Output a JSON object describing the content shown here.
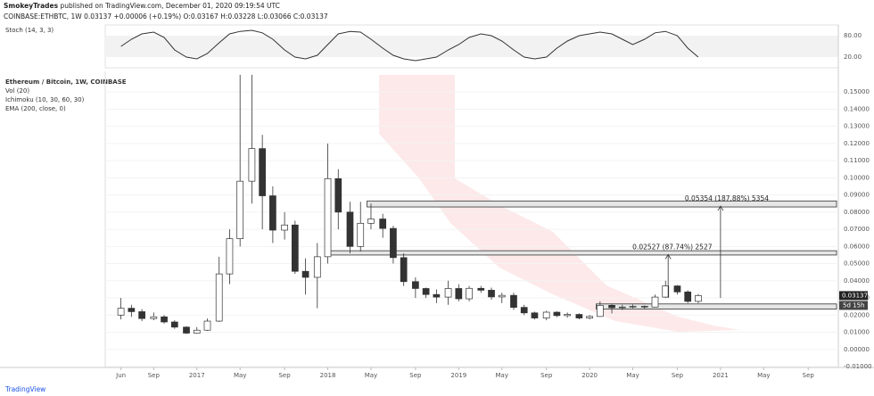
{
  "header": {
    "author": "SmokeyTrades",
    "published": "published on TradingView.com, December 01, 2020 09:19:54 UTC",
    "quote": "COINBASE:ETHBTC, 1W 0.03137 +0.00006 (+0.19%) O:0.03167 H:0.03228 L:0.03066 C:0.03137"
  },
  "indicators": {
    "stoch_label": "Stoch (14, 3, 3)",
    "symbol": "Ethereum / Bitcoin, 1W, COINBASE",
    "vol": "Vol (20)",
    "ichimoku": "Ichimoku (10, 30, 60, 30)",
    "ema": "EMA (200, close, 0)"
  },
  "footer": "TradingView",
  "chart_data": {
    "type": "candlestick",
    "x": [
      2016.42,
      2016.5,
      2016.58,
      2016.67,
      2016.75,
      2016.83,
      2016.92,
      2017.0,
      2017.08,
      2017.17,
      2017.25,
      2017.33,
      2017.42,
      2017.5,
      2017.58,
      2017.67,
      2017.75,
      2017.83,
      2017.92,
      2018.0,
      2018.08,
      2018.17,
      2018.25,
      2018.33,
      2018.42,
      2018.5,
      2018.58,
      2018.67,
      2018.75,
      2018.83,
      2018.92,
      2019.0,
      2019.08,
      2019.17,
      2019.25,
      2019.33,
      2019.42,
      2019.5,
      2019.58,
      2019.67,
      2019.75,
      2019.83,
      2019.92,
      2020.0,
      2020.08,
      2020.17,
      2020.25,
      2020.33,
      2020.42,
      2020.5,
      2020.58,
      2020.67,
      2020.75,
      2020.83
    ],
    "open": [
      0.02,
      0.024,
      0.022,
      0.018,
      0.019,
      0.016,
      0.013,
      0.0095,
      0.0112,
      0.0165,
      0.044,
      0.0645,
      0.098,
      0.117,
      0.0895,
      0.0695,
      0.0725,
      0.0455,
      0.042,
      0.054,
      0.0995,
      0.08,
      0.06,
      0.0735,
      0.076,
      0.0705,
      0.0535,
      0.0395,
      0.0355,
      0.032,
      0.0305,
      0.0355,
      0.0295,
      0.0356,
      0.0345,
      0.0306,
      0.0315,
      0.0245,
      0.0213,
      0.0183,
      0.0217,
      0.0197,
      0.0204,
      0.0183,
      0.0192,
      0.0257,
      0.0243,
      0.0247,
      0.0251,
      0.0247,
      0.0305,
      0.037,
      0.0335,
      0.028
    ],
    "high": [
      0.03,
      0.026,
      0.0235,
      0.0215,
      0.02,
      0.017,
      0.0135,
      0.013,
      0.018,
      0.054,
      0.07,
      0.16,
      0.16,
      0.125,
      0.095,
      0.08,
      0.075,
      0.053,
      0.062,
      0.12,
      0.105,
      0.086,
      0.086,
      0.085,
      0.079,
      0.072,
      0.056,
      0.042,
      0.036,
      0.035,
      0.04,
      0.038,
      0.037,
      0.037,
      0.036,
      0.033,
      0.033,
      0.026,
      0.022,
      0.0225,
      0.0222,
      0.0215,
      0.021,
      0.02,
      0.028,
      0.0265,
      0.026,
      0.0262,
      0.0256,
      0.032,
      0.04,
      0.0375,
      0.0345,
      0.0323
    ],
    "low": [
      0.0175,
      0.019,
      0.0165,
      0.017,
      0.015,
      0.012,
      0.009,
      0.0092,
      0.0108,
      0.016,
      0.038,
      0.06,
      0.085,
      0.07,
      0.062,
      0.064,
      0.044,
      0.032,
      0.024,
      0.05,
      0.07,
      0.056,
      0.057,
      0.07,
      0.065,
      0.05,
      0.037,
      0.03,
      0.03,
      0.027,
      0.026,
      0.028,
      0.028,
      0.033,
      0.029,
      0.027,
      0.023,
      0.02,
      0.0175,
      0.017,
      0.0188,
      0.0185,
      0.0175,
      0.0175,
      0.019,
      0.021,
      0.023,
      0.024,
      0.0238,
      0.0245,
      0.03,
      0.032,
      0.027,
      0.027
    ],
    "close": [
      0.024,
      0.022,
      0.018,
      0.019,
      0.016,
      0.013,
      0.0095,
      0.0112,
      0.0165,
      0.044,
      0.0645,
      0.098,
      0.117,
      0.0895,
      0.0695,
      0.0725,
      0.0455,
      0.042,
      0.054,
      0.0995,
      0.08,
      0.06,
      0.0735,
      0.076,
      0.0705,
      0.0535,
      0.0395,
      0.0355,
      0.032,
      0.0305,
      0.0355,
      0.0295,
      0.0356,
      0.0345,
      0.0306,
      0.0315,
      0.0245,
      0.0213,
      0.0183,
      0.0217,
      0.0197,
      0.0204,
      0.0183,
      0.0192,
      0.0257,
      0.0243,
      0.0247,
      0.0251,
      0.0247,
      0.0305,
      0.037,
      0.0335,
      0.028,
      0.03137
    ],
    "up_color": "#ffffff",
    "down_color": "#333333",
    "stoch": {
      "color": "#333333",
      "values": [
        50,
        70,
        85,
        90,
        75,
        40,
        20,
        15,
        30,
        60,
        85,
        92,
        95,
        88,
        70,
        40,
        20,
        15,
        25,
        55,
        85,
        92,
        90,
        70,
        45,
        25,
        15,
        10,
        15,
        20,
        40,
        55,
        75,
        85,
        80,
        65,
        40,
        20,
        15,
        20,
        45,
        65,
        80,
        85,
        90,
        85,
        70,
        55,
        70,
        88,
        92,
        80,
        45,
        20
      ],
      "ylim": [
        0,
        100
      ],
      "yticks": [
        {
          "value": 80,
          "label": "80.00"
        },
        {
          "value": 20,
          "label": "20.00"
        }
      ]
    },
    "xlim": [
      2016.3,
      2021.9
    ],
    "xticks": [
      {
        "value": 2016.42,
        "label": "Jun"
      },
      {
        "value": 2016.67,
        "label": "Sep"
      },
      {
        "value": 2017,
        "label": "2017"
      },
      {
        "value": 2017.33,
        "label": "May"
      },
      {
        "value": 2017.67,
        "label": "Sep"
      },
      {
        "value": 2018,
        "label": "2018"
      },
      {
        "value": 2018.33,
        "label": "May"
      },
      {
        "value": 2018.67,
        "label": "Sep"
      },
      {
        "value": 2019,
        "label": "2019"
      },
      {
        "value": 2019.33,
        "label": "May"
      },
      {
        "value": 2019.67,
        "label": "Sep"
      },
      {
        "value": 2020,
        "label": "2020"
      },
      {
        "value": 2020.33,
        "label": "May"
      },
      {
        "value": 2020.67,
        "label": "Sep"
      },
      {
        "value": 2021,
        "label": "2021"
      },
      {
        "value": 2021.33,
        "label": "May"
      },
      {
        "value": 2021.67,
        "label": "Sep"
      }
    ],
    "ylim": [
      -0.0105,
      0.162
    ],
    "yticks": [
      {
        "value": 0.15,
        "label": "0.15000"
      },
      {
        "value": 0.14,
        "label": "0.14000"
      },
      {
        "value": 0.13,
        "label": "0.13000"
      },
      {
        "value": 0.12,
        "label": "0.12000"
      },
      {
        "value": 0.11,
        "label": "0.11000"
      },
      {
        "value": 0.1,
        "label": "0.10000"
      },
      {
        "value": 0.09,
        "label": "0.09000"
      },
      {
        "value": 0.08,
        "label": "0.08000"
      },
      {
        "value": 0.07,
        "label": "0.07000"
      },
      {
        "value": 0.06,
        "label": "0.06000"
      },
      {
        "value": 0.05,
        "label": "0.05000"
      },
      {
        "value": 0.04,
        "label": "0.04000"
      },
      {
        "value": 0.03,
        "label": "0.03000"
      },
      {
        "value": 0.02,
        "label": "0.02000"
      },
      {
        "value": 0.01,
        "label": "0.01000"
      },
      {
        "value": 0,
        "label": "0.00000"
      },
      {
        "value": -0.01,
        "label": "-0.01000"
      }
    ],
    "zones": [
      {
        "low": 0.083,
        "high": 0.0865,
        "start": 2018.3
      },
      {
        "low": 0.055,
        "high": 0.0575,
        "start": 2018.0
      },
      {
        "low": 0.0235,
        "high": 0.0265,
        "start": 2020.05
      }
    ],
    "measures": [
      {
        "label": "0.05354 (187.88%) 5354",
        "from": 0.03,
        "to": 0.0835,
        "at": 2021.0
      },
      {
        "label": "0.02527 (87.74%) 2527",
        "from": 0.03,
        "to": 0.0553,
        "at": 2020.6
      }
    ],
    "price_tag": {
      "value": 0.03137,
      "label": "0.03137",
      "countdown": "5d 15h"
    }
  }
}
